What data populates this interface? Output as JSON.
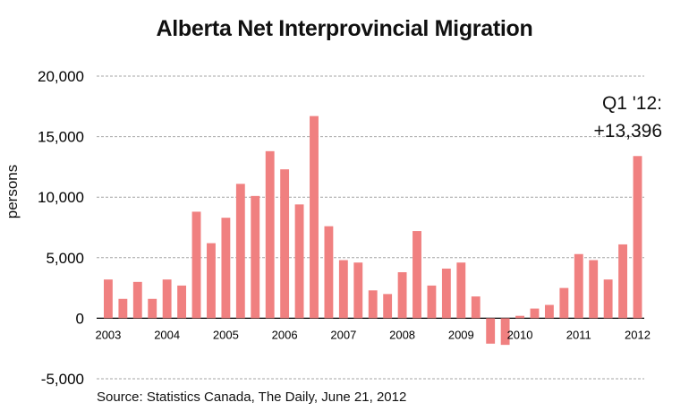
{
  "chart_data": {
    "type": "bar",
    "title": "Alberta Net Interprovincial Migration",
    "ylabel": "persons",
    "xlabel": "",
    "ylim": [
      -5000,
      20000
    ],
    "yticks": [
      "20,000",
      "15,000",
      "10,000",
      "5,000",
      "0",
      "-5,000"
    ],
    "ytick_values": [
      20000,
      15000,
      10000,
      5000,
      0,
      -5000
    ],
    "grid": true,
    "bar_color": "#f08080",
    "grid_color": "#a6a6a6",
    "quarters": [
      "2003 Q1",
      "2003 Q2",
      "2003 Q3",
      "2003 Q4",
      "2004 Q1",
      "2004 Q2",
      "2004 Q3",
      "2004 Q4",
      "2005 Q1",
      "2005 Q2",
      "2005 Q3",
      "2005 Q4",
      "2006 Q1",
      "2006 Q2",
      "2006 Q3",
      "2006 Q4",
      "2007 Q1",
      "2007 Q2",
      "2007 Q3",
      "2007 Q4",
      "2008 Q1",
      "2008 Q2",
      "2008 Q3",
      "2008 Q4",
      "2009 Q1",
      "2009 Q2",
      "2009 Q3",
      "2009 Q4",
      "2010 Q1",
      "2010 Q2",
      "2010 Q3",
      "2010 Q4",
      "2011 Q1",
      "2011 Q2",
      "2011 Q3",
      "2011 Q4",
      "2012 Q1"
    ],
    "values": [
      3200,
      1600,
      3000,
      1600,
      3200,
      2700,
      8800,
      6200,
      8300,
      11100,
      10100,
      13800,
      12300,
      9400,
      16700,
      7600,
      4800,
      4600,
      2300,
      2000,
      3800,
      7200,
      2700,
      4100,
      4600,
      1800,
      -2100,
      -2200,
      200,
      800,
      1100,
      2500,
      5300,
      4800,
      3200,
      6100,
      13396
    ],
    "year_labels": [
      {
        "label": "2003",
        "index": 0
      },
      {
        "label": "2004",
        "index": 4
      },
      {
        "label": "2005",
        "index": 8
      },
      {
        "label": "2006",
        "index": 12
      },
      {
        "label": "2007",
        "index": 16
      },
      {
        "label": "2008",
        "index": 20
      },
      {
        "label": "2009",
        "index": 24
      },
      {
        "label": "2010",
        "index": 28
      },
      {
        "label": "2011",
        "index": 32
      },
      {
        "label": "2012",
        "index": 36
      }
    ],
    "annotation": {
      "line1": "Q1 '12:",
      "line2": "+13,396"
    },
    "source": "Source: Statistics Canada, The Daily, June 21, 2012"
  }
}
